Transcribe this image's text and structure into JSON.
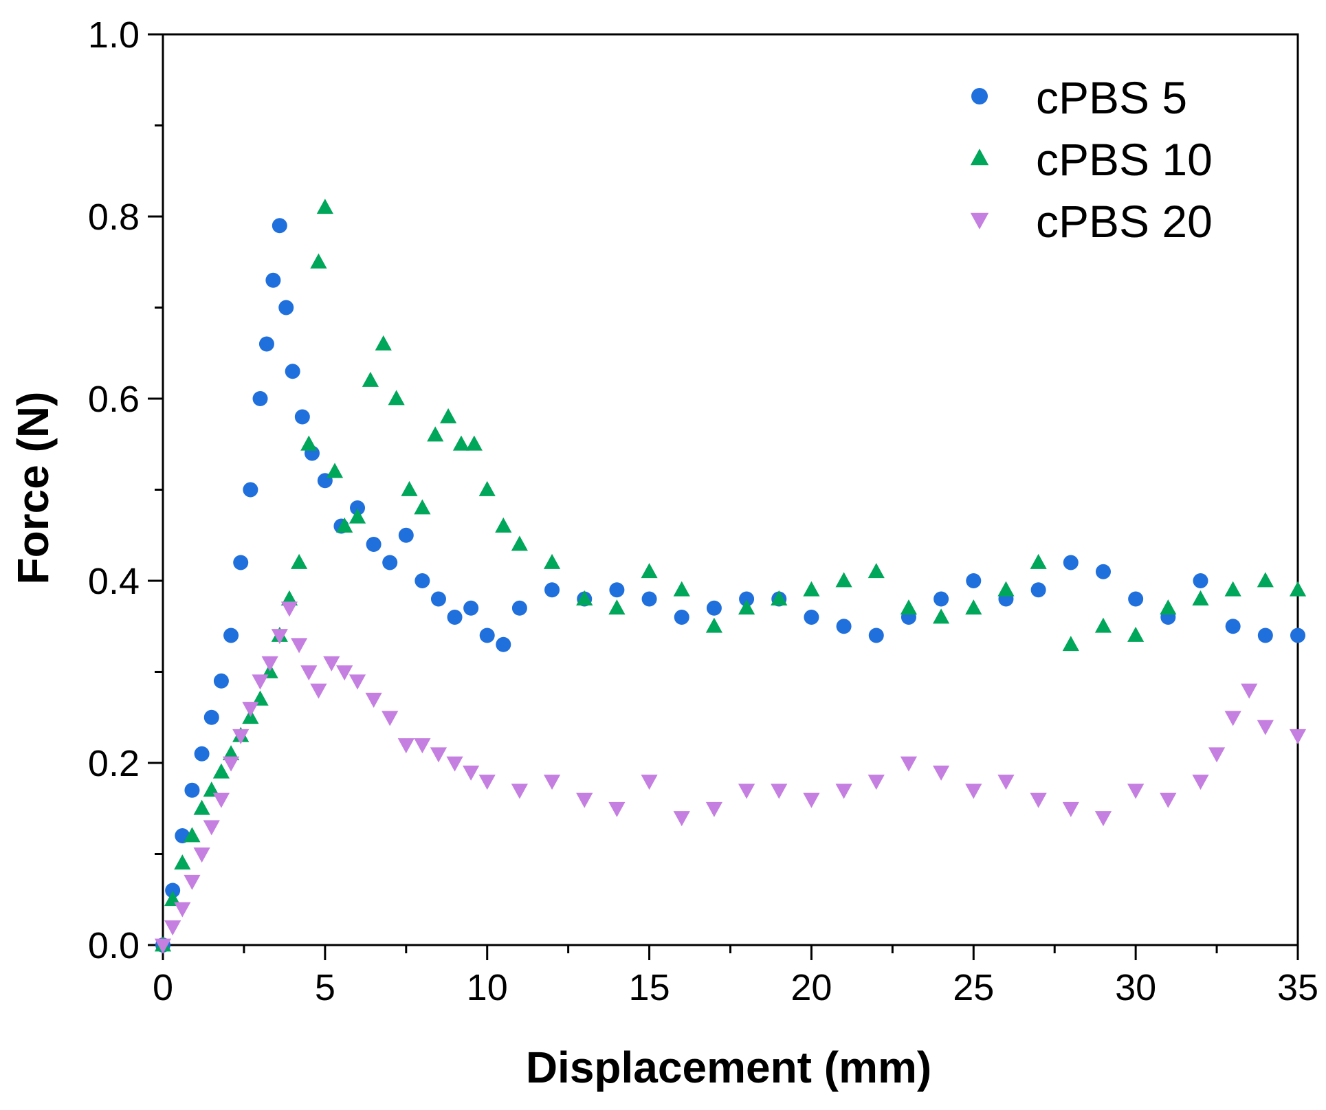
{
  "chart_data": {
    "type": "scatter",
    "title": "",
    "xlabel": "Displacement (mm)",
    "ylabel": "Force (N)",
    "xlim": [
      0,
      35
    ],
    "ylim": [
      0,
      1.0
    ],
    "xticks": [
      0,
      5,
      10,
      15,
      20,
      25,
      30,
      35
    ],
    "xtick_labels": [
      "0",
      "5",
      "10",
      "15",
      "20",
      "25",
      "30",
      "35"
    ],
    "yticks": [
      0.0,
      0.2,
      0.4,
      0.6,
      0.8,
      1.0
    ],
    "ytick_labels": [
      "0.0",
      "0.2",
      "0.4",
      "0.6",
      "0.8",
      "1.0"
    ],
    "grid": false,
    "legend_position": "top-right",
    "series": [
      {
        "name": "cPBS 5",
        "marker": "circle",
        "color": "#1f6fdc",
        "x": [
          0,
          0.3,
          0.6,
          0.9,
          1.2,
          1.5,
          1.8,
          2.1,
          2.4,
          2.7,
          3.0,
          3.2,
          3.4,
          3.6,
          3.8,
          4.0,
          4.3,
          4.6,
          5.0,
          5.5,
          6.0,
          6.5,
          7.0,
          7.5,
          8.0,
          8.5,
          9.0,
          9.5,
          10.0,
          10.5,
          11,
          12,
          13,
          14,
          15,
          16,
          17,
          18,
          19,
          20,
          21,
          22,
          23,
          24,
          25,
          26,
          27,
          28,
          29,
          30,
          31,
          32,
          33,
          34,
          35
        ],
        "y": [
          0.0,
          0.06,
          0.12,
          0.17,
          0.21,
          0.25,
          0.29,
          0.34,
          0.42,
          0.5,
          0.6,
          0.66,
          0.73,
          0.79,
          0.7,
          0.63,
          0.58,
          0.54,
          0.51,
          0.46,
          0.48,
          0.44,
          0.42,
          0.45,
          0.4,
          0.38,
          0.36,
          0.37,
          0.34,
          0.33,
          0.37,
          0.39,
          0.38,
          0.39,
          0.38,
          0.36,
          0.37,
          0.38,
          0.38,
          0.36,
          0.35,
          0.34,
          0.36,
          0.38,
          0.4,
          0.38,
          0.39,
          0.42,
          0.41,
          0.38,
          0.36,
          0.4,
          0.35,
          0.34,
          0.34
        ]
      },
      {
        "name": "cPBS 10",
        "marker": "triangle-up",
        "color": "#00a65a",
        "x": [
          0,
          0.3,
          0.6,
          0.9,
          1.2,
          1.5,
          1.8,
          2.1,
          2.4,
          2.7,
          3.0,
          3.3,
          3.6,
          3.9,
          4.2,
          4.5,
          4.8,
          5.0,
          5.3,
          5.6,
          6.0,
          6.4,
          6.8,
          7.2,
          7.6,
          8.0,
          8.4,
          8.8,
          9.2,
          9.6,
          10.0,
          10.5,
          11,
          12,
          13,
          14,
          15,
          16,
          17,
          18,
          19,
          20,
          21,
          22,
          23,
          24,
          25,
          26,
          27,
          28,
          29,
          30,
          31,
          32,
          33,
          34,
          35
        ],
        "y": [
          0.0,
          0.05,
          0.09,
          0.12,
          0.15,
          0.17,
          0.19,
          0.21,
          0.23,
          0.25,
          0.27,
          0.3,
          0.34,
          0.38,
          0.42,
          0.55,
          0.75,
          0.81,
          0.52,
          0.46,
          0.47,
          0.62,
          0.66,
          0.6,
          0.5,
          0.48,
          0.56,
          0.58,
          0.55,
          0.55,
          0.5,
          0.46,
          0.44,
          0.42,
          0.38,
          0.37,
          0.41,
          0.39,
          0.35,
          0.37,
          0.38,
          0.39,
          0.4,
          0.41,
          0.37,
          0.36,
          0.37,
          0.39,
          0.42,
          0.33,
          0.35,
          0.34,
          0.37,
          0.38,
          0.39,
          0.4,
          0.39
        ]
      },
      {
        "name": "cPBS 20",
        "marker": "triangle-down",
        "color": "#c47fe0",
        "x": [
          0,
          0.3,
          0.6,
          0.9,
          1.2,
          1.5,
          1.8,
          2.1,
          2.4,
          2.7,
          3.0,
          3.3,
          3.6,
          3.9,
          4.2,
          4.5,
          4.8,
          5.2,
          5.6,
          6.0,
          6.5,
          7.0,
          7.5,
          8.0,
          8.5,
          9.0,
          9.5,
          10.0,
          11,
          12,
          13,
          14,
          15,
          16,
          17,
          18,
          19,
          20,
          21,
          22,
          23,
          24,
          25,
          26,
          27,
          28,
          29,
          30,
          31,
          32,
          32.5,
          33,
          33.5,
          34,
          35
        ],
        "y": [
          0.0,
          0.02,
          0.04,
          0.07,
          0.1,
          0.13,
          0.16,
          0.2,
          0.23,
          0.26,
          0.29,
          0.31,
          0.34,
          0.37,
          0.33,
          0.3,
          0.28,
          0.31,
          0.3,
          0.29,
          0.27,
          0.25,
          0.22,
          0.22,
          0.21,
          0.2,
          0.19,
          0.18,
          0.17,
          0.18,
          0.16,
          0.15,
          0.18,
          0.14,
          0.15,
          0.17,
          0.17,
          0.16,
          0.17,
          0.18,
          0.2,
          0.19,
          0.17,
          0.18,
          0.16,
          0.15,
          0.14,
          0.17,
          0.16,
          0.18,
          0.21,
          0.25,
          0.28,
          0.24,
          0.23
        ]
      }
    ]
  }
}
